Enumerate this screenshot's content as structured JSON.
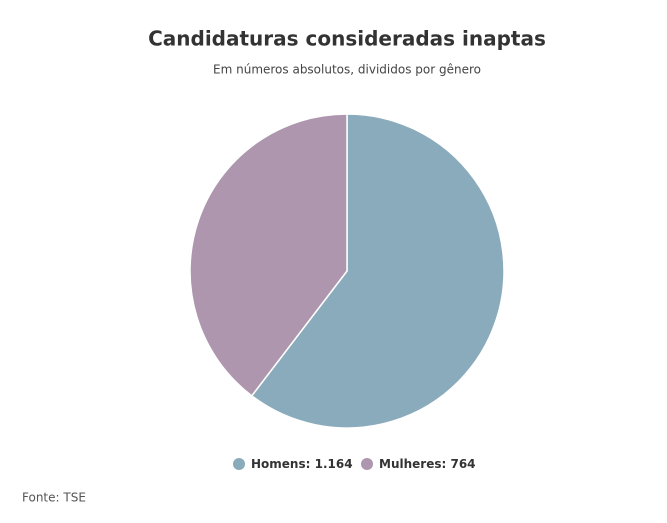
{
  "chart_data": {
    "type": "pie",
    "title": "Candidaturas consideradas inaptas",
    "subtitle": "Em números absolutos, divididos por gênero",
    "categories": [
      "Homens",
      "Mulheres"
    ],
    "values": [
      1164,
      764
    ],
    "value_labels": [
      "1.164",
      "764"
    ],
    "colors": [
      "#8aabbc",
      "#ad96ae"
    ],
    "source": "Fonte: TSE"
  }
}
